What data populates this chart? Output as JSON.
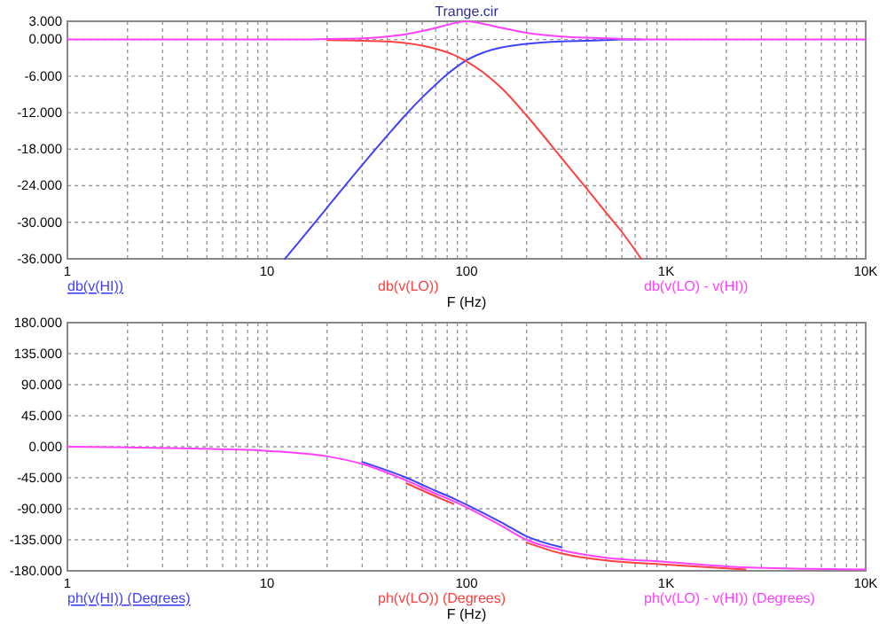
{
  "chart_data": [
    {
      "type": "line",
      "title": "Trange.cir",
      "xlabel": "F (Hz)",
      "log": "x",
      "grid": true,
      "legend": "bottom",
      "line_style": "solid",
      "marker": "none",
      "xlim": [
        1,
        10000
      ],
      "xticks": [
        {
          "value": 1,
          "label": "1"
        },
        {
          "value": 2,
          "label": null
        },
        {
          "value": 3,
          "label": null
        },
        {
          "value": 4,
          "label": null
        },
        {
          "value": 5,
          "label": null
        },
        {
          "value": 6,
          "label": null
        },
        {
          "value": 7,
          "label": null
        },
        {
          "value": 8,
          "label": null
        },
        {
          "value": 9,
          "label": null
        },
        {
          "value": 10,
          "label": "10"
        },
        {
          "value": 20,
          "label": null
        },
        {
          "value": 30,
          "label": null
        },
        {
          "value": 40,
          "label": null
        },
        {
          "value": 50,
          "label": null
        },
        {
          "value": 60,
          "label": null
        },
        {
          "value": 70,
          "label": null
        },
        {
          "value": 80,
          "label": null
        },
        {
          "value": 90,
          "label": null
        },
        {
          "value": 100,
          "label": "100"
        },
        {
          "value": 200,
          "label": null
        },
        {
          "value": 300,
          "label": null
        },
        {
          "value": 400,
          "label": null
        },
        {
          "value": 500,
          "label": null
        },
        {
          "value": 600,
          "label": null
        },
        {
          "value": 700,
          "label": null
        },
        {
          "value": 800,
          "label": null
        },
        {
          "value": 900,
          "label": null
        },
        {
          "value": 1000,
          "label": "1K"
        },
        {
          "value": 2000,
          "label": null
        },
        {
          "value": 3000,
          "label": null
        },
        {
          "value": 4000,
          "label": null
        },
        {
          "value": 5000,
          "label": null
        },
        {
          "value": 6000,
          "label": null
        },
        {
          "value": 7000,
          "label": null
        },
        {
          "value": 8000,
          "label": null
        },
        {
          "value": 9000,
          "label": null
        },
        {
          "value": 10000,
          "label": "10K"
        }
      ],
      "ylim": [
        -36,
        3
      ],
      "yticks": [
        {
          "value": 3,
          "label": "3.000"
        },
        {
          "value": 0,
          "label": "0.000"
        },
        {
          "value": -6,
          "label": "-6.000"
        },
        {
          "value": -12,
          "label": "-12.000"
        },
        {
          "value": -18,
          "label": "-18.000"
        },
        {
          "value": -24,
          "label": "-24.000"
        },
        {
          "value": -30,
          "label": "-30.000"
        },
        {
          "value": -36,
          "label": "-36.000"
        }
      ],
      "x": [
        1,
        2,
        5,
        10,
        12.3,
        15,
        20,
        30,
        40,
        50,
        60,
        70,
        80,
        90,
        100,
        120,
        150,
        200,
        300,
        400,
        500,
        600,
        750,
        1000,
        2000,
        5000,
        10000
      ],
      "series": [
        {
          "name": "db(v(HI))",
          "color": "#4040ff",
          "values": [
            null,
            null,
            null,
            null,
            -36,
            -32.6,
            -27.6,
            -20.6,
            -15.8,
            -12.2,
            -9.5,
            -7.4,
            -5.7,
            -4.4,
            -3.4,
            -2.2,
            -1.3,
            -0.7,
            -0.3,
            -0.2,
            -0.1,
            0,
            0,
            null,
            null,
            null,
            null
          ]
        },
        {
          "name": "db(v(LO))",
          "color": "#ff4040",
          "values": [
            null,
            null,
            null,
            null,
            null,
            null,
            -0.1,
            -0.2,
            -0.3,
            -0.6,
            -1,
            -1.5,
            -2.1,
            -2.8,
            -3.6,
            -5.3,
            -8,
            -12.5,
            -19.5,
            -24.5,
            -28.4,
            -31.6,
            -36,
            null,
            null,
            null,
            null
          ]
        },
        {
          "name": "db(v(LO) - v(HI))",
          "color": "#ff40ff",
          "values": [
            0,
            0,
            0,
            0,
            0,
            0,
            0.1,
            0.2,
            0.5,
            0.9,
            1.4,
            1.9,
            2.4,
            2.8,
            3,
            2.6,
            1.9,
            1.1,
            0.5,
            0.3,
            0.2,
            0.1,
            0,
            0,
            0,
            0,
            0
          ]
        }
      ]
    },
    {
      "type": "line",
      "xlabel": "F (Hz)",
      "log": "x",
      "grid": true,
      "legend": "bottom",
      "line_style": "solid",
      "marker": "none",
      "xlim": [
        1,
        10000
      ],
      "xticks": [
        {
          "value": 1,
          "label": "1"
        },
        {
          "value": 2,
          "label": null
        },
        {
          "value": 3,
          "label": null
        },
        {
          "value": 4,
          "label": null
        },
        {
          "value": 5,
          "label": null
        },
        {
          "value": 6,
          "label": null
        },
        {
          "value": 7,
          "label": null
        },
        {
          "value": 8,
          "label": null
        },
        {
          "value": 9,
          "label": null
        },
        {
          "value": 10,
          "label": "10"
        },
        {
          "value": 20,
          "label": null
        },
        {
          "value": 30,
          "label": null
        },
        {
          "value": 40,
          "label": null
        },
        {
          "value": 50,
          "label": null
        },
        {
          "value": 60,
          "label": null
        },
        {
          "value": 70,
          "label": null
        },
        {
          "value": 80,
          "label": null
        },
        {
          "value": 90,
          "label": null
        },
        {
          "value": 100,
          "label": "100"
        },
        {
          "value": 200,
          "label": null
        },
        {
          "value": 300,
          "label": null
        },
        {
          "value": 400,
          "label": null
        },
        {
          "value": 500,
          "label": null
        },
        {
          "value": 600,
          "label": null
        },
        {
          "value": 700,
          "label": null
        },
        {
          "value": 800,
          "label": null
        },
        {
          "value": 900,
          "label": null
        },
        {
          "value": 1000,
          "label": "1K"
        },
        {
          "value": 2000,
          "label": null
        },
        {
          "value": 3000,
          "label": null
        },
        {
          "value": 4000,
          "label": null
        },
        {
          "value": 5000,
          "label": null
        },
        {
          "value": 6000,
          "label": null
        },
        {
          "value": 7000,
          "label": null
        },
        {
          "value": 8000,
          "label": null
        },
        {
          "value": 9000,
          "label": null
        },
        {
          "value": 10000,
          "label": "10K"
        }
      ],
      "ylim": [
        -180,
        180
      ],
      "yticks": [
        {
          "value": 180,
          "label": "180.000"
        },
        {
          "value": 135,
          "label": "135.000"
        },
        {
          "value": 90,
          "label": "90.000"
        },
        {
          "value": 45,
          "label": "45.000"
        },
        {
          "value": 0,
          "label": "0.000"
        },
        {
          "value": -45,
          "label": "-45.000"
        },
        {
          "value": -90,
          "label": "-90.000"
        },
        {
          "value": -135,
          "label": "-135.000"
        },
        {
          "value": -180,
          "label": "-180.000"
        }
      ],
      "x": [
        1,
        2,
        5,
        10,
        20,
        30,
        50,
        70,
        86,
        100,
        150,
        200,
        300,
        500,
        1000,
        2500,
        5000,
        10000
      ],
      "series": [
        {
          "name": "ph(v(HI)) (Degrees)",
          "color": "#4040ff",
          "values": [
            null,
            null,
            null,
            null,
            null,
            -22,
            -45,
            -64,
            -75,
            -84,
            -110,
            -130,
            -146,
            null,
            null,
            null,
            null,
            null
          ]
        },
        {
          "name": "ph(v(LO)) (Degrees)",
          "color": "#ff4040",
          "values": [
            null,
            null,
            null,
            null,
            null,
            null,
            -53,
            -72,
            -83,
            null,
            null,
            -139,
            -155,
            -165,
            -171,
            -178,
            null,
            null
          ]
        },
        {
          "name": "ph(v(LO) - v(HI)) (Degrees)",
          "color": "#ff40ff",
          "values": [
            0,
            -1,
            -3,
            -6,
            -14,
            -25,
            -49,
            -68,
            -79,
            -88,
            -115,
            -135,
            -150,
            -161,
            -167,
            -175,
            -177,
            -178
          ]
        }
      ]
    }
  ]
}
